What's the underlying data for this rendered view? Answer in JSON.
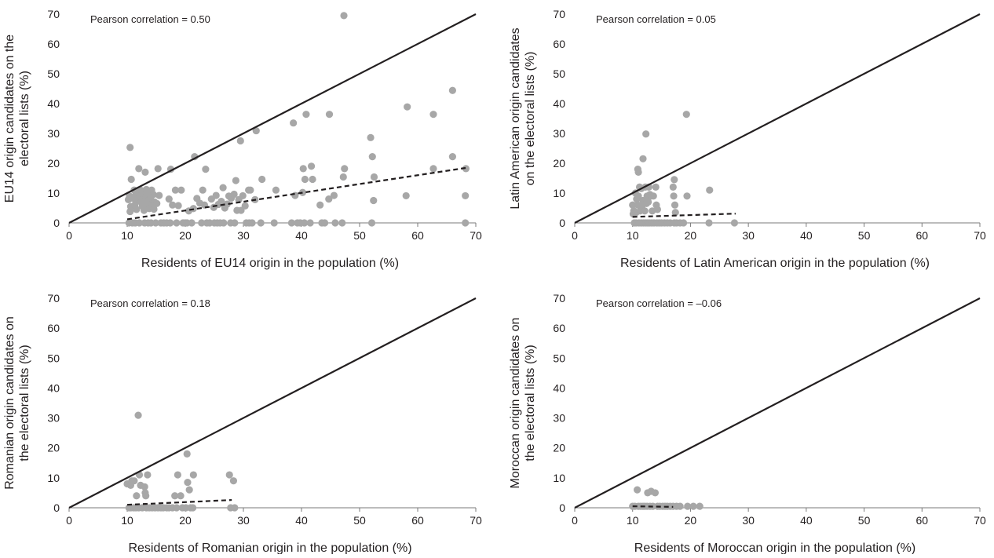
{
  "chart_data": [
    {
      "type": "scatter",
      "annotation": "Pearson correlation = 0.50",
      "xlabel": "Residents of EU14 origin in the population (%)",
      "ylabel_lines": [
        "EU14 origin candidates on the",
        "electoral lists (%)"
      ],
      "xlim": [
        0,
        70
      ],
      "ylim": [
        0,
        70
      ],
      "xticks": [
        0,
        10,
        20,
        30,
        40,
        50,
        60,
        70
      ],
      "yticks": [
        0,
        10,
        20,
        30,
        40,
        50,
        60,
        70
      ],
      "grid": false,
      "reference_line": {
        "style": "solid",
        "x": [
          0,
          70
        ],
        "y": [
          0,
          70
        ]
      },
      "trend_line": {
        "style": "dashed",
        "x": [
          10,
          68.5
        ],
        "y": [
          1.2,
          18.5
        ]
      },
      "point_color": "#a7a7a7",
      "points": [
        [
          10.5,
          25.3
        ],
        [
          10.7,
          14.6
        ],
        [
          10.4,
          9.0
        ],
        [
          10.2,
          7.8
        ],
        [
          10.6,
          5.5
        ],
        [
          10.5,
          3.8
        ],
        [
          10.3,
          0
        ],
        [
          10.9,
          0
        ],
        [
          11.2,
          11.0
        ],
        [
          11.5,
          9.5
        ],
        [
          11.0,
          8.2
        ],
        [
          11.8,
          7.3
        ],
        [
          11.3,
          6.0
        ],
        [
          11.6,
          4.5
        ],
        [
          11.4,
          0
        ],
        [
          12.0,
          18.2
        ],
        [
          12.3,
          11.0
        ],
        [
          12.5,
          10.2
        ],
        [
          12.2,
          9.1
        ],
        [
          12.7,
          8.0
        ],
        [
          12.4,
          7.0
        ],
        [
          12.6,
          5.6
        ],
        [
          12.9,
          4.2
        ],
        [
          12.1,
          0
        ],
        [
          13.1,
          17.0
        ],
        [
          13.3,
          11.2
        ],
        [
          13.5,
          10.0
        ],
        [
          13.2,
          8.8
        ],
        [
          13.7,
          7.6
        ],
        [
          13.4,
          6.1
        ],
        [
          13.8,
          4.8
        ],
        [
          13.0,
          0
        ],
        [
          13.6,
          0
        ],
        [
          14.2,
          11.0
        ],
        [
          14.5,
          9.5
        ],
        [
          14.0,
          8.4
        ],
        [
          14.7,
          7.0
        ],
        [
          14.3,
          5.8
        ],
        [
          14.6,
          4.6
        ],
        [
          14.1,
          0
        ],
        [
          14.9,
          0
        ],
        [
          15.3,
          18.2
        ],
        [
          15.5,
          9.2
        ],
        [
          15.1,
          6.5
        ],
        [
          15.8,
          0
        ],
        [
          16.3,
          0
        ],
        [
          16.8,
          0
        ],
        [
          17.5,
          18.0
        ],
        [
          17.2,
          8.0
        ],
        [
          17.8,
          6.0
        ],
        [
          17.4,
          0
        ],
        [
          18.3,
          11.0
        ],
        [
          18.8,
          5.8
        ],
        [
          18.5,
          0
        ],
        [
          19.3,
          11.0
        ],
        [
          19.6,
          0
        ],
        [
          20.0,
          0
        ],
        [
          20.6,
          4.0
        ],
        [
          20.3,
          0
        ],
        [
          21.4,
          4.8
        ],
        [
          21.1,
          0
        ],
        [
          21.6,
          22.2
        ],
        [
          22.0,
          8.2
        ],
        [
          22.5,
          6.6
        ],
        [
          22.8,
          0
        ],
        [
          23.5,
          18.0
        ],
        [
          23.0,
          11.0
        ],
        [
          23.3,
          6.0
        ],
        [
          23.7,
          0
        ],
        [
          24.5,
          8.0
        ],
        [
          24.9,
          5.2
        ],
        [
          24.2,
          0
        ],
        [
          25.3,
          9.2
        ],
        [
          25.7,
          6.2
        ],
        [
          25.0,
          0
        ],
        [
          25.5,
          0
        ],
        [
          26.0,
          0
        ],
        [
          26.5,
          11.8
        ],
        [
          26.2,
          7.2
        ],
        [
          26.8,
          5.0
        ],
        [
          26.6,
          0
        ],
        [
          27.5,
          9.0
        ],
        [
          27.2,
          6.3
        ],
        [
          27.8,
          0
        ],
        [
          27.9,
          8.3
        ],
        [
          28.7,
          14.2
        ],
        [
          28.4,
          9.6
        ],
        [
          28.9,
          4.2
        ],
        [
          28.5,
          0
        ],
        [
          29.5,
          27.5
        ],
        [
          29.2,
          7.8
        ],
        [
          29.6,
          4.2
        ],
        [
          29.9,
          9.1
        ],
        [
          30.5,
          0
        ],
        [
          30.9,
          11.0
        ],
        [
          31.2,
          11.0
        ],
        [
          30.3,
          5.7
        ],
        [
          31.0,
          0
        ],
        [
          31.5,
          0
        ],
        [
          32.2,
          30.9
        ],
        [
          32.0,
          7.8
        ],
        [
          33.2,
          14.6
        ],
        [
          33.0,
          0
        ],
        [
          35.6,
          11.0
        ],
        [
          35.3,
          0
        ],
        [
          38.6,
          33.5
        ],
        [
          38.9,
          9.2
        ],
        [
          38.3,
          0
        ],
        [
          39.3,
          0
        ],
        [
          39.8,
          0
        ],
        [
          40.3,
          18.2
        ],
        [
          40.6,
          14.6
        ],
        [
          40.2,
          10.2
        ],
        [
          40.5,
          0
        ],
        [
          40.8,
          36.4
        ],
        [
          41.5,
          0
        ],
        [
          41.7,
          19.0
        ],
        [
          41.9,
          14.6
        ],
        [
          43.2,
          6.0
        ],
        [
          43.5,
          0
        ],
        [
          44.0,
          0
        ],
        [
          44.8,
          36.4
        ],
        [
          44.7,
          8.0
        ],
        [
          45.6,
          9.2
        ],
        [
          45.8,
          0
        ],
        [
          47.3,
          69.5
        ],
        [
          47.4,
          18.2
        ],
        [
          47.2,
          15.4
        ],
        [
          47.0,
          0
        ],
        [
          51.9,
          28.6
        ],
        [
          52.2,
          22.2
        ],
        [
          52.5,
          15.4
        ],
        [
          52.1,
          0
        ],
        [
          52.4,
          7.5
        ],
        [
          58.2,
          38.9
        ],
        [
          58.0,
          9.1
        ],
        [
          62.7,
          36.4
        ],
        [
          62.7,
          18.2
        ],
        [
          66.0,
          44.4
        ],
        [
          66.0,
          22.2
        ],
        [
          68.3,
          18.2
        ],
        [
          68.2,
          9.1
        ],
        [
          68.2,
          0
        ]
      ]
    },
    {
      "type": "scatter",
      "annotation": "Pearson correlation = 0.05",
      "xlabel": "Residents of Latin American origin in the population (%)",
      "ylabel_lines": [
        "Latin American origin candidates",
        "on the electoral lists (%)"
      ],
      "xlim": [
        0,
        70
      ],
      "ylim": [
        0,
        70
      ],
      "xticks": [
        0,
        10,
        20,
        30,
        40,
        50,
        60,
        70
      ],
      "yticks": [
        0,
        10,
        20,
        30,
        40,
        50,
        60,
        70
      ],
      "grid": false,
      "reference_line": {
        "style": "solid",
        "x": [
          0,
          70
        ],
        "y": [
          0,
          70
        ]
      },
      "trend_line": {
        "style": "dashed",
        "x": [
          10,
          27.8
        ],
        "y": [
          2.0,
          3.1
        ]
      },
      "point_color": "#a7a7a7",
      "points": [
        [
          10.0,
          6.0
        ],
        [
          10.2,
          4.0
        ],
        [
          10.1,
          3.0
        ],
        [
          10.3,
          0
        ],
        [
          10.6,
          0
        ],
        [
          10.5,
          10.0
        ],
        [
          10.7,
          8.0
        ],
        [
          10.9,
          6.0
        ],
        [
          10.6,
          3.5
        ],
        [
          10.9,
          18.0
        ],
        [
          11.0,
          17.0
        ],
        [
          11.2,
          12.0
        ],
        [
          11.0,
          9.0
        ],
        [
          11.3,
          4.0
        ],
        [
          11.1,
          0
        ],
        [
          11.5,
          0
        ],
        [
          11.8,
          21.5
        ],
        [
          11.5,
          11.5
        ],
        [
          11.8,
          7.5
        ],
        [
          11.6,
          5.5
        ],
        [
          11.9,
          0
        ],
        [
          12.3,
          29.8
        ],
        [
          12.2,
          12.0
        ],
        [
          12.5,
          9.0
        ],
        [
          12.4,
          6.5
        ],
        [
          12.1,
          4.0
        ],
        [
          12.3,
          0
        ],
        [
          12.6,
          0
        ],
        [
          12.8,
          12.0
        ],
        [
          12.7,
          7.0
        ],
        [
          13.0,
          9.5
        ],
        [
          12.9,
          0
        ],
        [
          13.2,
          9.0
        ],
        [
          13.4,
          4.0
        ],
        [
          13.3,
          0
        ],
        [
          13.6,
          9.0
        ],
        [
          13.7,
          0
        ],
        [
          14.0,
          12.0
        ],
        [
          14.1,
          6.0
        ],
        [
          14.3,
          4.5
        ],
        [
          14.2,
          0
        ],
        [
          14.6,
          0
        ],
        [
          15.0,
          0
        ],
        [
          15.5,
          0
        ],
        [
          16.0,
          0
        ],
        [
          16.5,
          0
        ],
        [
          17.0,
          12.0
        ],
        [
          17.2,
          14.5
        ],
        [
          17.1,
          9.0
        ],
        [
          17.3,
          6.0
        ],
        [
          17.4,
          3.5
        ],
        [
          17.2,
          0
        ],
        [
          17.6,
          0
        ],
        [
          18.2,
          0
        ],
        [
          18.8,
          0
        ],
        [
          19.3,
          36.4
        ],
        [
          19.4,
          9.0
        ],
        [
          23.3,
          11.0
        ],
        [
          23.2,
          0
        ],
        [
          27.6,
          0
        ]
      ]
    },
    {
      "type": "scatter",
      "annotation": "Pearson correlation = 0.18",
      "xlabel": "Residents of Romanian origin in the population (%)",
      "ylabel_lines": [
        "Romanian origin candidates on",
        "the electoral lists (%)"
      ],
      "xlim": [
        0,
        70
      ],
      "ylim": [
        0,
        70
      ],
      "xticks": [
        0,
        10,
        20,
        30,
        40,
        50,
        60,
        70
      ],
      "yticks": [
        0,
        10,
        20,
        30,
        40,
        50,
        60,
        70
      ],
      "grid": false,
      "reference_line": {
        "style": "solid",
        "x": [
          0,
          70
        ],
        "y": [
          0,
          70
        ]
      },
      "trend_line": {
        "style": "dashed",
        "x": [
          10,
          28
        ],
        "y": [
          1.0,
          2.6
        ]
      },
      "point_color": "#a7a7a7",
      "points": [
        [
          10.0,
          8.0
        ],
        [
          10.3,
          0
        ],
        [
          10.6,
          7.5
        ],
        [
          10.8,
          9.0
        ],
        [
          10.6,
          0
        ],
        [
          11.2,
          9.0
        ],
        [
          11.6,
          4.0
        ],
        [
          11.1,
          0
        ],
        [
          11.5,
          0
        ],
        [
          11.9,
          30.9
        ],
        [
          12.1,
          11.0
        ],
        [
          12.3,
          7.5
        ],
        [
          12.0,
          0
        ],
        [
          12.6,
          0
        ],
        [
          13.1,
          5.0
        ],
        [
          13.2,
          4.0
        ],
        [
          13.0,
          7.0
        ],
        [
          13.5,
          11.0
        ],
        [
          13.3,
          0
        ],
        [
          13.8,
          0
        ],
        [
          14.3,
          0
        ],
        [
          14.8,
          0
        ],
        [
          15.3,
          0
        ],
        [
          15.8,
          0
        ],
        [
          16.2,
          0
        ],
        [
          16.8,
          0
        ],
        [
          17.2,
          0
        ],
        [
          17.8,
          0
        ],
        [
          18.2,
          4.0
        ],
        [
          18.7,
          11.0
        ],
        [
          18.5,
          0
        ],
        [
          19.2,
          4.0
        ],
        [
          19.5,
          0
        ],
        [
          20.3,
          18.0
        ],
        [
          20.4,
          8.5
        ],
        [
          20.7,
          6.0
        ],
        [
          20.1,
          0
        ],
        [
          20.9,
          0
        ],
        [
          21.4,
          11.0
        ],
        [
          21.3,
          0
        ],
        [
          27.6,
          11.0
        ],
        [
          27.8,
          0
        ],
        [
          28.3,
          9.0
        ],
        [
          28.5,
          0
        ]
      ]
    },
    {
      "type": "scatter",
      "annotation": "Pearson correlation = –0.06",
      "xlabel": "Residents of Moroccan origin in the population (%)",
      "ylabel_lines": [
        "Moroccan origin candidates on",
        "the electoral lists (%)"
      ],
      "xlim": [
        0,
        70
      ],
      "ylim": [
        0,
        70
      ],
      "xticks": [
        0,
        10,
        20,
        30,
        40,
        50,
        60,
        70
      ],
      "yticks": [
        0,
        10,
        20,
        30,
        40,
        50,
        60,
        70
      ],
      "grid": false,
      "reference_line": {
        "style": "solid",
        "x": [
          0,
          70
        ],
        "y": [
          0,
          70
        ]
      },
      "trend_line": {
        "style": "dashed",
        "x": [
          10,
          17
        ],
        "y": [
          0.5,
          0.3
        ]
      },
      "point_color": "#a7a7a7",
      "points": [
        [
          10.0,
          0.5
        ],
        [
          10.4,
          0.5
        ],
        [
          10.8,
          6.0
        ],
        [
          11.0,
          0.5
        ],
        [
          11.4,
          0.5
        ],
        [
          11.8,
          0.5
        ],
        [
          12.1,
          0.5
        ],
        [
          12.5,
          0.5
        ],
        [
          12.6,
          5.0
        ],
        [
          13.0,
          0.5
        ],
        [
          13.2,
          5.5
        ],
        [
          13.5,
          0.5
        ],
        [
          13.9,
          5.0
        ],
        [
          14.3,
          0.5
        ],
        [
          14.7,
          0.5
        ],
        [
          15.2,
          0.5
        ],
        [
          15.6,
          0.5
        ],
        [
          16.0,
          0.5
        ],
        [
          16.5,
          0.5
        ],
        [
          17.0,
          0.5
        ],
        [
          17.6,
          0.5
        ],
        [
          18.2,
          0.5
        ],
        [
          19.5,
          0.5
        ],
        [
          20.5,
          0.5
        ],
        [
          21.6,
          0.5
        ]
      ]
    }
  ]
}
